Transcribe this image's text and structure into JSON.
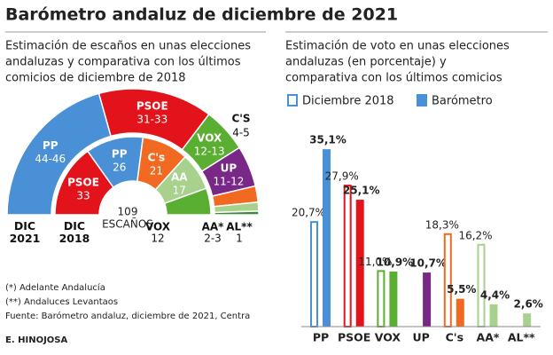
{
  "title": "Barómetro andaluz de diciembre de 2021",
  "chart_data": [
    {
      "type": "hemicycle",
      "subtitle": [
        "Estimación de escaños en unas elecciones",
        "andaluzas y comparativa con los últimos",
        "comicios de diciembre de 2018"
      ],
      "total": 109,
      "total_label": "ESCAÑOS",
      "rings": [
        {
          "name": "DIC 2021",
          "segments": [
            {
              "party": "PP",
              "low": 44,
              "high": 46,
              "label": "44-46",
              "color": "#4a90d6"
            },
            {
              "party": "PSOE",
              "low": 31,
              "high": 33,
              "label": "31-33",
              "color": "#e3131b"
            },
            {
              "party": "VOX",
              "low": 12,
              "high": 13,
              "label": "12-13",
              "color": "#5aae32"
            },
            {
              "party": "UP",
              "low": 11,
              "high": 12,
              "label": "11-12",
              "color": "#7a2887"
            },
            {
              "party": "C'S",
              "low": 4,
              "high": 5,
              "label": "4-5",
              "color": "#f26a21"
            },
            {
              "party": "AA*",
              "low": 2,
              "high": 3,
              "label": "2-3",
              "color": "#a9d18e"
            },
            {
              "party": "AL**",
              "low": 1,
              "high": 1,
              "label": "1",
              "color": "#3d8b3a"
            }
          ]
        },
        {
          "name": "DIC 2018",
          "segments": [
            {
              "party": "PSOE",
              "seats": 33,
              "color": "#e3131b"
            },
            {
              "party": "PP",
              "seats": 26,
              "color": "#4a90d6"
            },
            {
              "party": "C's",
              "seats": 21,
              "color": "#f26a21"
            },
            {
              "party": "AA",
              "seats": 17,
              "color": "#a9d18e"
            },
            {
              "party": "VOX",
              "seats": 12,
              "color": "#5aae32"
            }
          ]
        }
      ]
    },
    {
      "type": "bar",
      "subtitle": [
        "Estimación de voto en unas elecciones",
        "andaluzas (en porcentaje) y",
        "comparativa con los últimos comicios"
      ],
      "categories": [
        "PP",
        "PSOE",
        "VOX",
        "UP",
        "C's",
        "AA*",
        "AL**"
      ],
      "colors": [
        "#4a90d6",
        "#e3131b",
        "#5aae32",
        "#7a2887",
        "#f26a21",
        "#a9d18e",
        "#a9d18e"
      ],
      "ylim": [
        0,
        36
      ],
      "series": [
        {
          "name": "Diciembre 2018",
          "color": "#4a90d6",
          "style": "outline",
          "values": [
            20.7,
            27.9,
            11.0,
            null,
            18.3,
            16.2,
            null
          ],
          "value_labels": [
            "20,7%",
            "27,9%",
            "11,0%",
            null,
            "18,3%",
            "16,2%",
            null
          ]
        },
        {
          "name": "Barómetro",
          "color": "#4a90d6",
          "style": "solid",
          "values": [
            35.1,
            25.1,
            10.9,
            10.7,
            5.5,
            4.4,
            2.6
          ],
          "value_labels": [
            "35,1%",
            "25,1%",
            "10,9%",
            "10,7%",
            "5,5%",
            "4,4%",
            "2,6%"
          ]
        }
      ]
    }
  ],
  "notes": [
    "(*) Adelante Andalucía",
    "(**) Andaluces Levantaos",
    "Fuente: Barómetro andaluz, diciembre de 2021, Centra"
  ],
  "credit": "E. HINOJOSA"
}
